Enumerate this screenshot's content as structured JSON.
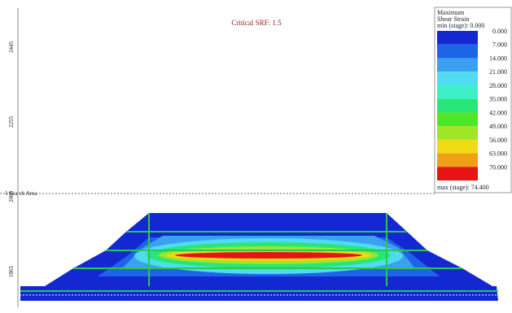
{
  "title": "Critical SRF: 1.5",
  "legend": {
    "heading": [
      "Maximum",
      "Shear Strain"
    ],
    "min_label": "min (stage): 0.000",
    "max_label": "max (stage): 74.400",
    "items": [
      {
        "label": "0.000",
        "color": "#1428d2"
      },
      {
        "label": "7.000",
        "color": "#1e64e6"
      },
      {
        "label": "14.000",
        "color": "#3ca0f0"
      },
      {
        "label": "21.000",
        "color": "#50dcf0"
      },
      {
        "label": "28.000",
        "color": "#3cf0c8"
      },
      {
        "label": "35.000",
        "color": "#28e678"
      },
      {
        "label": "42.000",
        "color": "#50e628"
      },
      {
        "label": "49.000",
        "color": "#a0e628"
      },
      {
        "label": "56.000",
        "color": "#f0dc14"
      },
      {
        "label": "63.000",
        "color": "#f0a014"
      },
      {
        "label": "70.000",
        "color": "#e61414"
      }
    ]
  },
  "search_area": "1 Search Area",
  "y_axis_labels": [
    "2445",
    "2255",
    "2065",
    "1865"
  ]
}
